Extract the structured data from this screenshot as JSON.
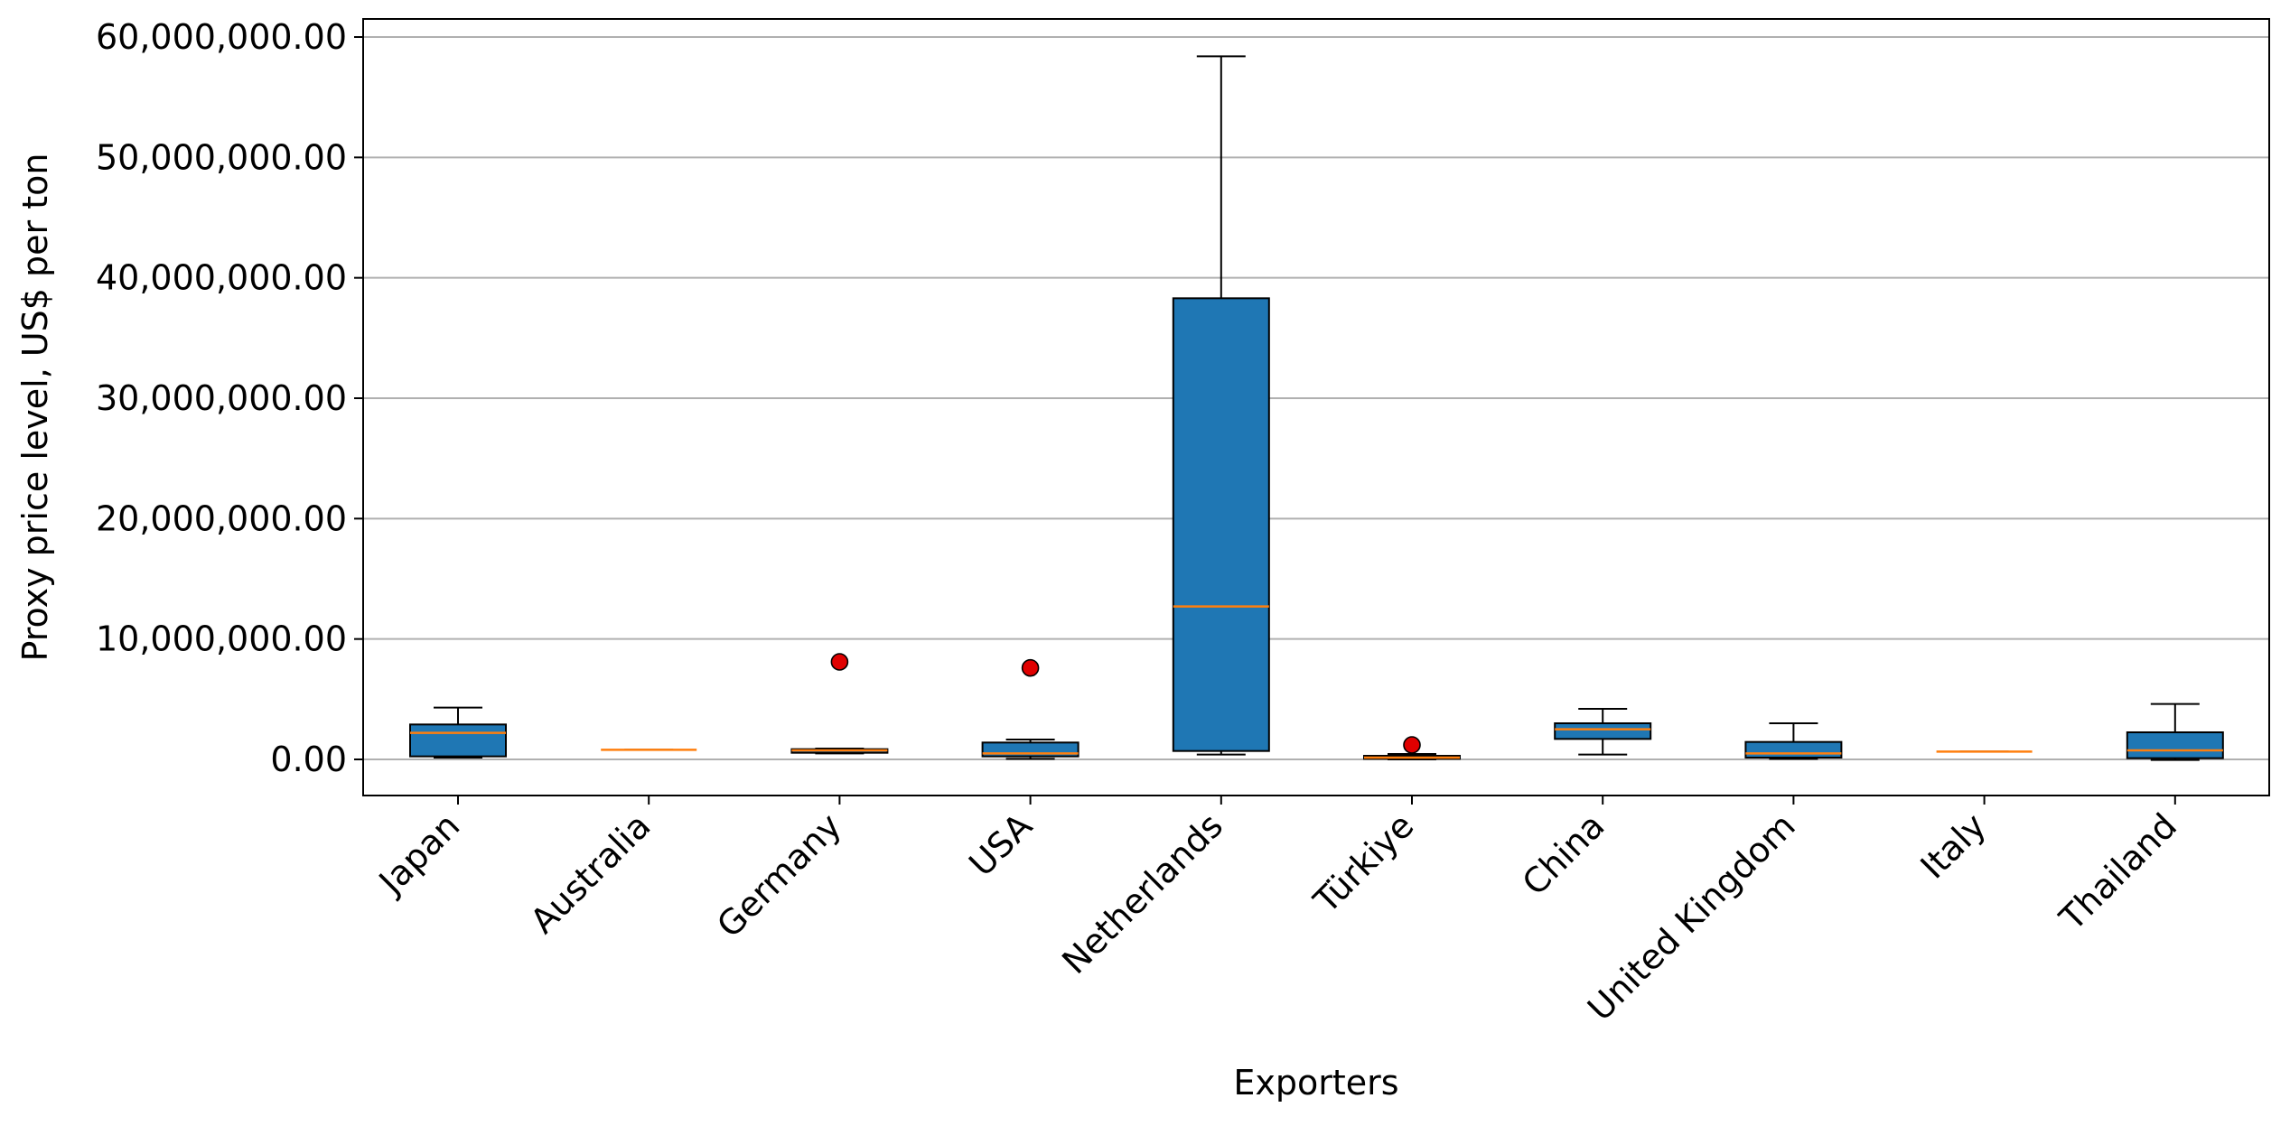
{
  "chart_data": {
    "type": "boxplot",
    "title": "",
    "xlabel": "Exporters",
    "ylabel": "Proxy price level, US$ per ton",
    "ylim": [
      -3000000,
      61500000
    ],
    "yticks": [
      0,
      10000000,
      20000000,
      30000000,
      40000000,
      50000000,
      60000000
    ],
    "ytick_labels": [
      "0.00",
      "10,000,000.00",
      "20,000,000.00",
      "30,000,000.00",
      "40,000,000.00",
      "50,000,000.00",
      "60,000,000.00"
    ],
    "grid": "horizontal",
    "categories": [
      "Japan",
      "Australia",
      "Germany",
      "USA",
      "Netherlands",
      "Türkiye",
      "China",
      "United Kingdom",
      "Italy",
      "Thailand"
    ],
    "boxes": [
      {
        "category": "Japan",
        "whisker_low": 150000,
        "q1": 250000,
        "median": 2200000,
        "q3": 2900000,
        "whisker_high": 4300000,
        "outliers": []
      },
      {
        "category": "Australia",
        "whisker_low": 800000,
        "q1": 800000,
        "median": 800000,
        "q3": 800000,
        "whisker_high": 800000,
        "outliers": []
      },
      {
        "category": "Germany",
        "whisker_low": 500000,
        "q1": 550000,
        "median": 750000,
        "q3": 850000,
        "whisker_high": 900000,
        "outliers": [
          8100000
        ]
      },
      {
        "category": "USA",
        "whisker_low": 50000,
        "q1": 250000,
        "median": 500000,
        "q3": 1400000,
        "whisker_high": 1650000,
        "outliers": [
          7600000
        ]
      },
      {
        "category": "Netherlands",
        "whisker_low": 400000,
        "q1": 700000,
        "median": 12700000,
        "q3": 38300000,
        "whisker_high": 58400000,
        "outliers": []
      },
      {
        "category": "Türkiye",
        "whisker_low": 0,
        "q1": 50000,
        "median": 150000,
        "q3": 300000,
        "whisker_high": 450000,
        "outliers": [
          1200000
        ]
      },
      {
        "category": "China",
        "whisker_low": 400000,
        "q1": 1700000,
        "median": 2500000,
        "q3": 3000000,
        "whisker_high": 4200000,
        "outliers": []
      },
      {
        "category": "United Kingdom",
        "whisker_low": 50000,
        "q1": 150000,
        "median": 500000,
        "q3": 1450000,
        "whisker_high": 3000000,
        "outliers": []
      },
      {
        "category": "Italy",
        "whisker_low": 650000,
        "q1": 650000,
        "median": 650000,
        "q3": 650000,
        "whisker_high": 650000,
        "outliers": []
      },
      {
        "category": "Thailand",
        "whisker_low": -50000,
        "q1": 100000,
        "median": 750000,
        "q3": 2250000,
        "whisker_high": 4600000,
        "outliers": []
      }
    ],
    "colors": {
      "box_fill": "#1f77b4",
      "median": "#ff7f0e",
      "outlier_fill": "#e00000",
      "grid": "#b0b0b0",
      "axis": "#000000"
    }
  }
}
